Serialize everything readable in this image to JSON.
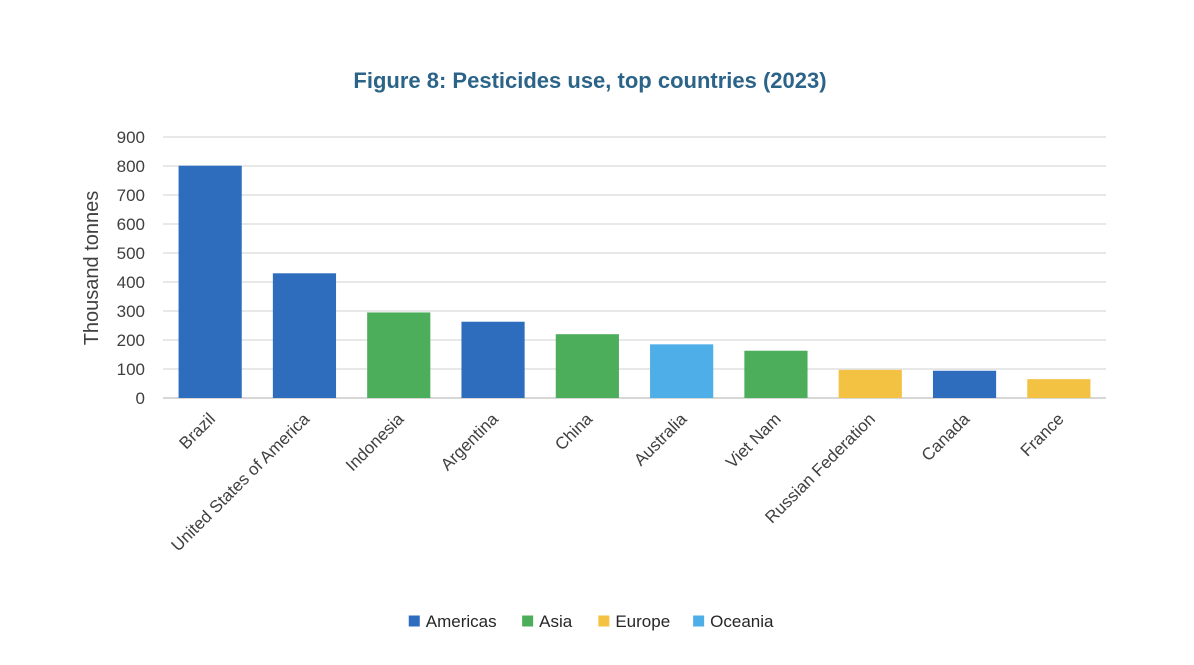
{
  "chart_data": {
    "type": "bar",
    "title": "Figure 8: Pesticides use, top countries (2023)",
    "ylabel": "Thousand tonnes",
    "xlabel": "",
    "ylim": [
      0,
      900
    ],
    "yticks": [
      0,
      100,
      200,
      300,
      400,
      500,
      600,
      700,
      800,
      900
    ],
    "grid": true,
    "legend_position": "bottom",
    "categories": [
      "Brazil",
      "United States of America",
      "Indonesia",
      "Argentina",
      "China",
      "Australia",
      "Viet Nam",
      "Russian Federation",
      "Canada",
      "France"
    ],
    "values": [
      801,
      430,
      295,
      263,
      220,
      185,
      163,
      97,
      94,
      65
    ],
    "regions": [
      "Americas",
      "Americas",
      "Asia",
      "Americas",
      "Asia",
      "Oceania",
      "Asia",
      "Europe",
      "Americas",
      "Europe"
    ],
    "legend": [
      {
        "name": "Americas",
        "color": "#2e6dbe"
      },
      {
        "name": "Asia",
        "color": "#4cad5b"
      },
      {
        "name": "Europe",
        "color": "#f4c242"
      },
      {
        "name": "Oceania",
        "color": "#4daee8"
      }
    ]
  }
}
